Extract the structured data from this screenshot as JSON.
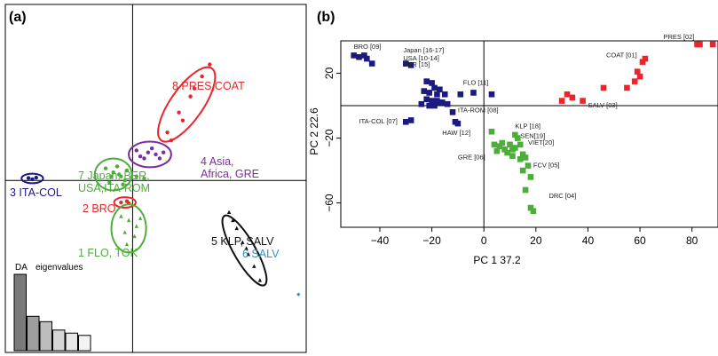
{
  "chart_data": [
    {
      "panel": "(a)",
      "type": "scatter",
      "title": "",
      "xlabel": "",
      "ylabel": "",
      "groups": [
        {
          "label": "3 ITA-COL",
          "color": "#1a1a80",
          "marker": "circle",
          "ellipse": {
            "cx": -2.6,
            "cy": 0.05,
            "rx": 0.28,
            "ry": 0.12,
            "angle": 0
          },
          "points": [
            [
              -2.7,
              0.06
            ],
            [
              -2.6,
              0.03
            ],
            [
              -2.5,
              0.07
            ]
          ]
        },
        {
          "label": "2 BRO",
          "color": "#e8262b",
          "marker": "circle",
          "ellipse": {
            "cx": -0.2,
            "cy": -0.55,
            "rx": 0.28,
            "ry": 0.13,
            "angle": 0
          },
          "points": [
            [
              -0.3,
              -0.55
            ],
            [
              -0.15,
              -0.52
            ],
            [
              -0.1,
              -0.57
            ]
          ]
        },
        {
          "label": "7 Japan, BER, USA,ITA-ROM",
          "color": "#4cae38",
          "marker": "circle",
          "ellipse": {
            "cx": -0.5,
            "cy": 0.15,
            "rx": 0.48,
            "ry": 0.4,
            "angle": 0
          },
          "points": [
            [
              -0.7,
              0.3
            ],
            [
              -0.5,
              0.2
            ],
            [
              -0.3,
              0.1
            ],
            [
              -0.4,
              0.35
            ],
            [
              -0.2,
              0.0
            ],
            [
              -0.6,
              -0.05
            ],
            [
              -0.35,
              0.15
            ],
            [
              -0.15,
              0.25
            ],
            [
              0.1,
              0.1
            ],
            [
              0.3,
              0.05
            ],
            [
              -0.55,
              0.1
            ],
            [
              -0.25,
              -0.1
            ]
          ]
        },
        {
          "label": "1 FLO, TOK",
          "color": "#4cae38",
          "marker": "triangle",
          "ellipse": {
            "cx": -0.1,
            "cy": -1.2,
            "rx": 0.45,
            "ry": 0.6,
            "angle": 0
          },
          "points": [
            [
              -0.3,
              -0.9
            ],
            [
              -0.1,
              -1.0
            ],
            [
              0.1,
              -1.15
            ],
            [
              -0.2,
              -1.3
            ],
            [
              0.05,
              -1.4
            ],
            [
              -0.15,
              -1.6
            ],
            [
              0.2,
              -0.95
            ]
          ]
        },
        {
          "label": "4 Asia, Africa, GRE",
          "color": "#7b2d9f",
          "marker": "circle",
          "ellipse": {
            "cx": 0.45,
            "cy": 0.65,
            "rx": 0.55,
            "ry": 0.32,
            "angle": 0
          },
          "points": [
            [
              0.2,
              0.6
            ],
            [
              0.4,
              0.7
            ],
            [
              0.6,
              0.65
            ],
            [
              0.5,
              0.8
            ],
            [
              0.3,
              0.55
            ],
            [
              0.8,
              0.7
            ],
            [
              0.1,
              0.75
            ],
            [
              0.7,
              0.55
            ]
          ]
        },
        {
          "label": "8 PRES,COAT",
          "color": "#e8262b",
          "marker": "circle",
          "ellipse": {
            "cx": 1.4,
            "cy": 1.9,
            "rx": 0.42,
            "ry": 1.1,
            "angle": 35
          },
          "points": [
            [
              0.9,
              1.2
            ],
            [
              1.2,
              1.7
            ],
            [
              1.5,
              2.1
            ],
            [
              1.8,
              2.6
            ],
            [
              2.0,
              2.9
            ],
            [
              1.3,
              1.5
            ],
            [
              1.0,
              1.0
            ],
            [
              1.6,
              2.3
            ]
          ]
        },
        {
          "label": "5 KLP, SALV",
          "color": "#111111",
          "marker": "triangle",
          "ellipse": {
            "cx": 2.9,
            "cy": -1.75,
            "rx": 0.28,
            "ry": 1.0,
            "angle": -30
          },
          "points": [
            [
              2.5,
              -0.8
            ],
            [
              2.7,
              -1.2
            ],
            [
              2.85,
              -1.55
            ],
            [
              3.0,
              -1.85
            ],
            [
              3.15,
              -2.15
            ],
            [
              3.3,
              -2.5
            ],
            [
              2.95,
              -1.7
            ],
            [
              2.6,
              -1.0
            ]
          ]
        },
        {
          "label": "6 SALV",
          "color": "#2f93c6",
          "marker": "diamond",
          "ellipse": null,
          "points": [
            [
              4.3,
              -2.85
            ]
          ]
        }
      ],
      "inset": {
        "label_da": "DA",
        "label_eig": "eigenvalues",
        "values": [
          1.0,
          0.45,
          0.38,
          0.27,
          0.23,
          0.2
        ],
        "fills": [
          "#7a7a7a",
          "#9e9e9e",
          "#bdbdbd",
          "#d6d6d6",
          "#e8e8e8",
          "#f3f3f3"
        ]
      }
    },
    {
      "panel": "(b)",
      "type": "scatter",
      "title": "",
      "xlabel": "PC 1 37.2",
      "ylabel": "PC 2 22.6",
      "xlim": [
        -55,
        90
      ],
      "ylim": [
        -75,
        40
      ],
      "xticks": [
        -40,
        -20,
        0,
        20,
        40,
        60,
        80
      ],
      "yticks": [
        20,
        -20,
        -60
      ],
      "hline": 0,
      "vline": 0,
      "series": [
        {
          "color": "#1a1a80",
          "points": [
            [
              -50,
              31
            ],
            [
              -48,
              30
            ],
            [
              -46,
              31
            ],
            [
              -45,
              29
            ],
            [
              -43,
              26
            ],
            [
              -30,
              26
            ],
            [
              -28,
              25
            ],
            [
              -22,
              15
            ],
            [
              -20,
              14
            ],
            [
              -19,
              11
            ],
            [
              -17,
              10
            ],
            [
              -23,
              9
            ],
            [
              -21,
              8
            ],
            [
              -18,
              7
            ],
            [
              -15,
              7
            ],
            [
              -22,
              4
            ],
            [
              -20,
              3
            ],
            [
              -18,
              3
            ],
            [
              -16,
              2
            ],
            [
              -24,
              1
            ],
            [
              -21,
              0
            ],
            [
              -19,
              0
            ],
            [
              -17,
              2
            ],
            [
              -14,
              1
            ],
            [
              -9,
              7
            ],
            [
              -4,
              8
            ],
            [
              3,
              7
            ],
            [
              -12,
              -4
            ],
            [
              -30,
              -10
            ],
            [
              -28,
              -9
            ],
            [
              -11,
              -10
            ],
            [
              -10,
              -11
            ]
          ]
        },
        {
          "color": "#e8262b",
          "points": [
            [
              30,
              3
            ],
            [
              38,
              3
            ],
            [
              46,
              11
            ],
            [
              55,
              11
            ],
            [
              58,
              15
            ],
            [
              59,
              21
            ],
            [
              61,
              27
            ],
            [
              62,
              29
            ],
            [
              82,
              41
            ],
            [
              83,
              41
            ],
            [
              88,
              43
            ],
            [
              32,
              7
            ],
            [
              34,
              5
            ],
            [
              60,
              18
            ]
          ]
        },
        {
          "color": "#4cae38",
          "points": [
            [
              3,
              -16
            ],
            [
              4,
              -24
            ],
            [
              5,
              -28
            ],
            [
              6,
              -25
            ],
            [
              8,
              -27
            ],
            [
              7,
              -23
            ],
            [
              10,
              -24
            ],
            [
              11,
              -27
            ],
            [
              12,
              -26
            ],
            [
              13,
              -20
            ],
            [
              12,
              -18
            ],
            [
              14,
              -24
            ],
            [
              15,
              -30
            ],
            [
              16,
              -32
            ],
            [
              17,
              -37
            ],
            [
              15,
              -40
            ],
            [
              18,
              -44
            ],
            [
              16,
              -52
            ],
            [
              18,
              -63
            ],
            [
              19,
              -65
            ],
            [
              9,
              -29
            ],
            [
              11,
              -31
            ],
            [
              14,
              -33
            ]
          ]
        }
      ],
      "annotations": [
        {
          "text": "BRO [09]",
          "x": -50,
          "y": 35
        },
        {
          "text": "Japan [16-17]",
          "x": -31,
          "y": 33
        },
        {
          "text": "USA [10-14]",
          "x": -31,
          "y": 28
        },
        {
          "text": "BER [15]",
          "x": -31,
          "y": 24
        },
        {
          "text": "FLO [11]",
          "x": -8,
          "y": 13
        },
        {
          "text": "ITA-ROM [08]",
          "x": -10,
          "y": -4
        },
        {
          "text": "ITA-COL [07]",
          "x": -48,
          "y": -11
        },
        {
          "text": "HAW [12]",
          "x": -16,
          "y": -18
        },
        {
          "text": "KLP [18]",
          "x": 12,
          "y": -14
        },
        {
          "text": "SEN[19]",
          "x": 14,
          "y": -20
        },
        {
          "text": "VIET[20]",
          "x": 17,
          "y": -24
        },
        {
          "text": "GRE [06]",
          "x": -10,
          "y": -33
        },
        {
          "text": "FCV [05]",
          "x": 19,
          "y": -38
        },
        {
          "text": "DRC [04]",
          "x": 25,
          "y": -57
        },
        {
          "text": "PRES [02]",
          "x": 69,
          "y": 41
        },
        {
          "text": "COAT [01]",
          "x": 47,
          "y": 30
        },
        {
          "text": "SALV [03]",
          "x": 40,
          "y": -1
        }
      ]
    }
  ]
}
